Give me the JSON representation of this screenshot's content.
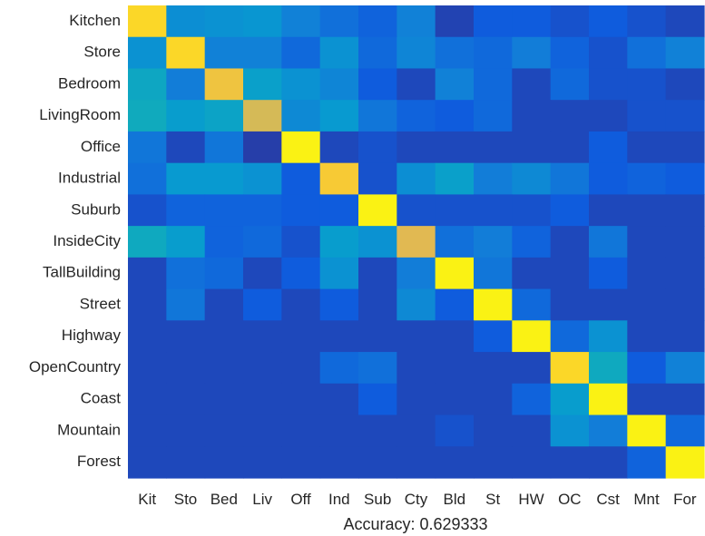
{
  "chart_data": {
    "type": "heatmap",
    "title": "",
    "xlabel": "Accuracy: 0.629333",
    "ylabel": "",
    "row_labels": [
      "Kitchen",
      "Store",
      "Bedroom",
      "LivingRoom",
      "Office",
      "Industrial",
      "Suburb",
      "InsideCity",
      "TallBuilding",
      "Street",
      "Highway",
      "OpenCountry",
      "Coast",
      "Mountain",
      "Forest"
    ],
    "col_labels": [
      "Kit",
      "Sto",
      "Bed",
      "Liv",
      "Off",
      "Ind",
      "Sub",
      "Cty",
      "Bld",
      "St",
      "HW",
      "OC",
      "Cst",
      "Mnt",
      "For"
    ],
    "colormap": "parula",
    "value_range": [
      0,
      1
    ],
    "values": [
      [
        0.92,
        0.28,
        0.3,
        0.32,
        0.22,
        0.16,
        0.12,
        0.22,
        0.05,
        0.1,
        0.1,
        0.08,
        0.1,
        0.08,
        0.06
      ],
      [
        0.3,
        0.92,
        0.22,
        0.22,
        0.14,
        0.3,
        0.14,
        0.24,
        0.16,
        0.14,
        0.2,
        0.12,
        0.08,
        0.16,
        0.22
      ],
      [
        0.42,
        0.2,
        0.85,
        0.38,
        0.3,
        0.24,
        0.1,
        0.06,
        0.22,
        0.14,
        0.06,
        0.14,
        0.08,
        0.08,
        0.06
      ],
      [
        0.45,
        0.36,
        0.4,
        0.78,
        0.26,
        0.34,
        0.18,
        0.12,
        0.1,
        0.14,
        0.06,
        0.06,
        0.06,
        0.08,
        0.08
      ],
      [
        0.18,
        0.06,
        0.18,
        0.04,
        0.98,
        0.06,
        0.08,
        0.06,
        0.06,
        0.06,
        0.06,
        0.06,
        0.1,
        0.06,
        0.06
      ],
      [
        0.16,
        0.34,
        0.34,
        0.3,
        0.1,
        0.88,
        0.08,
        0.28,
        0.38,
        0.2,
        0.26,
        0.18,
        0.1,
        0.12,
        0.1
      ],
      [
        0.08,
        0.12,
        0.12,
        0.12,
        0.1,
        0.1,
        0.98,
        0.08,
        0.08,
        0.08,
        0.08,
        0.1,
        0.06,
        0.06,
        0.06
      ],
      [
        0.44,
        0.36,
        0.12,
        0.14,
        0.08,
        0.36,
        0.3,
        0.8,
        0.16,
        0.2,
        0.12,
        0.06,
        0.18,
        0.06,
        0.06
      ],
      [
        0.06,
        0.16,
        0.14,
        0.06,
        0.1,
        0.3,
        0.06,
        0.2,
        0.98,
        0.18,
        0.06,
        0.06,
        0.1,
        0.06,
        0.06
      ],
      [
        0.06,
        0.18,
        0.06,
        0.1,
        0.06,
        0.1,
        0.06,
        0.26,
        0.1,
        0.98,
        0.14,
        0.06,
        0.06,
        0.06,
        0.06
      ],
      [
        0.06,
        0.06,
        0.06,
        0.06,
        0.06,
        0.06,
        0.06,
        0.06,
        0.06,
        0.1,
        0.98,
        0.14,
        0.3,
        0.06,
        0.06
      ],
      [
        0.06,
        0.06,
        0.06,
        0.06,
        0.06,
        0.14,
        0.16,
        0.06,
        0.06,
        0.06,
        0.06,
        0.92,
        0.44,
        0.1,
        0.22
      ],
      [
        0.06,
        0.06,
        0.06,
        0.06,
        0.06,
        0.06,
        0.1,
        0.06,
        0.06,
        0.06,
        0.12,
        0.36,
        0.98,
        0.06,
        0.06
      ],
      [
        0.06,
        0.06,
        0.06,
        0.06,
        0.06,
        0.06,
        0.06,
        0.06,
        0.08,
        0.06,
        0.06,
        0.3,
        0.2,
        0.98,
        0.14
      ],
      [
        0.06,
        0.06,
        0.06,
        0.06,
        0.06,
        0.06,
        0.06,
        0.06,
        0.06,
        0.06,
        0.06,
        0.06,
        0.06,
        0.12,
        0.98
      ]
    ]
  }
}
